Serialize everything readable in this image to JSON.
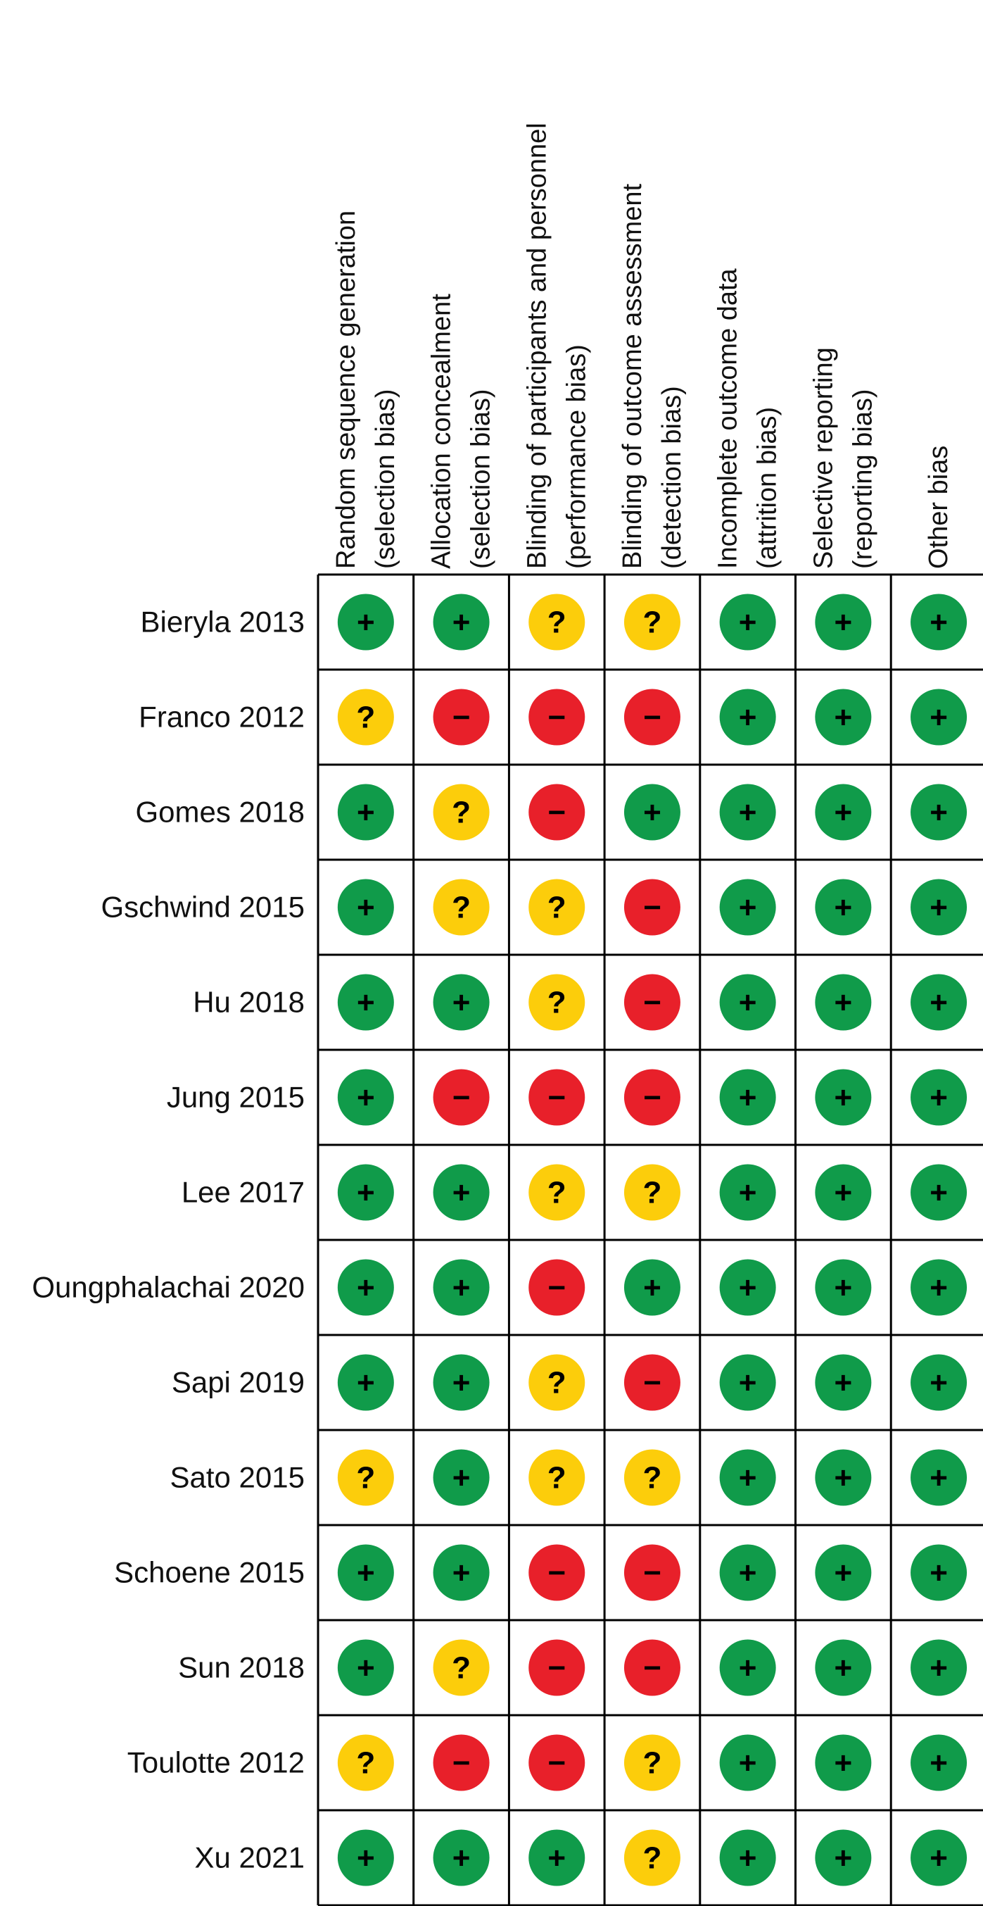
{
  "chart_data": {
    "type": "table",
    "domains": [
      [
        "Random sequence generation",
        "(selection bias)"
      ],
      [
        "Allocation concealment",
        "(selection bias)"
      ],
      [
        "Blinding of participants and personnel",
        "(performance bias)"
      ],
      [
        "Blinding of outcome assessment",
        "(detection bias)"
      ],
      [
        "Incomplete outcome data",
        "(attrition bias)"
      ],
      [
        "Selective reporting",
        "(reporting bias)"
      ],
      [
        "Other bias"
      ]
    ],
    "studies": [
      {
        "name": "Bieryla 2013",
        "ratings": [
          "+",
          "+",
          "?",
          "?",
          "+",
          "+",
          "+"
        ]
      },
      {
        "name": "Franco 2012",
        "ratings": [
          "?",
          "-",
          "-",
          "-",
          "+",
          "+",
          "+"
        ]
      },
      {
        "name": "Gomes 2018",
        "ratings": [
          "+",
          "?",
          "-",
          "+",
          "+",
          "+",
          "+"
        ]
      },
      {
        "name": "Gschwind 2015",
        "ratings": [
          "+",
          "?",
          "?",
          "-",
          "+",
          "+",
          "+"
        ]
      },
      {
        "name": "Hu 2018",
        "ratings": [
          "+",
          "+",
          "?",
          "-",
          "+",
          "+",
          "+"
        ]
      },
      {
        "name": "Jung 2015",
        "ratings": [
          "+",
          "-",
          "-",
          "-",
          "+",
          "+",
          "+"
        ]
      },
      {
        "name": "Lee 2017",
        "ratings": [
          "+",
          "+",
          "?",
          "?",
          "+",
          "+",
          "+"
        ]
      },
      {
        "name": "Oungphalachai 2020",
        "ratings": [
          "+",
          "+",
          "-",
          "+",
          "+",
          "+",
          "+"
        ]
      },
      {
        "name": "Sapi 2019",
        "ratings": [
          "+",
          "+",
          "?",
          "-",
          "+",
          "+",
          "+"
        ]
      },
      {
        "name": "Sato 2015",
        "ratings": [
          "?",
          "+",
          "?",
          "?",
          "+",
          "+",
          "+"
        ]
      },
      {
        "name": "Schoene 2015",
        "ratings": [
          "+",
          "+",
          "-",
          "-",
          "+",
          "+",
          "+"
        ]
      },
      {
        "name": "Sun 2018",
        "ratings": [
          "+",
          "?",
          "-",
          "-",
          "+",
          "+",
          "+"
        ]
      },
      {
        "name": "Toulotte 2012",
        "ratings": [
          "?",
          "-",
          "-",
          "?",
          "+",
          "+",
          "+"
        ]
      },
      {
        "name": "Xu 2021",
        "ratings": [
          "+",
          "+",
          "+",
          "?",
          "+",
          "+",
          "+"
        ]
      }
    ],
    "legend": {
      "+": {
        "color": "#109b4a",
        "glyph": "+"
      },
      "?": {
        "color": "#fccd0b",
        "glyph": "?"
      },
      "-": {
        "color": "#e8202a",
        "glyph": "−"
      }
    }
  }
}
